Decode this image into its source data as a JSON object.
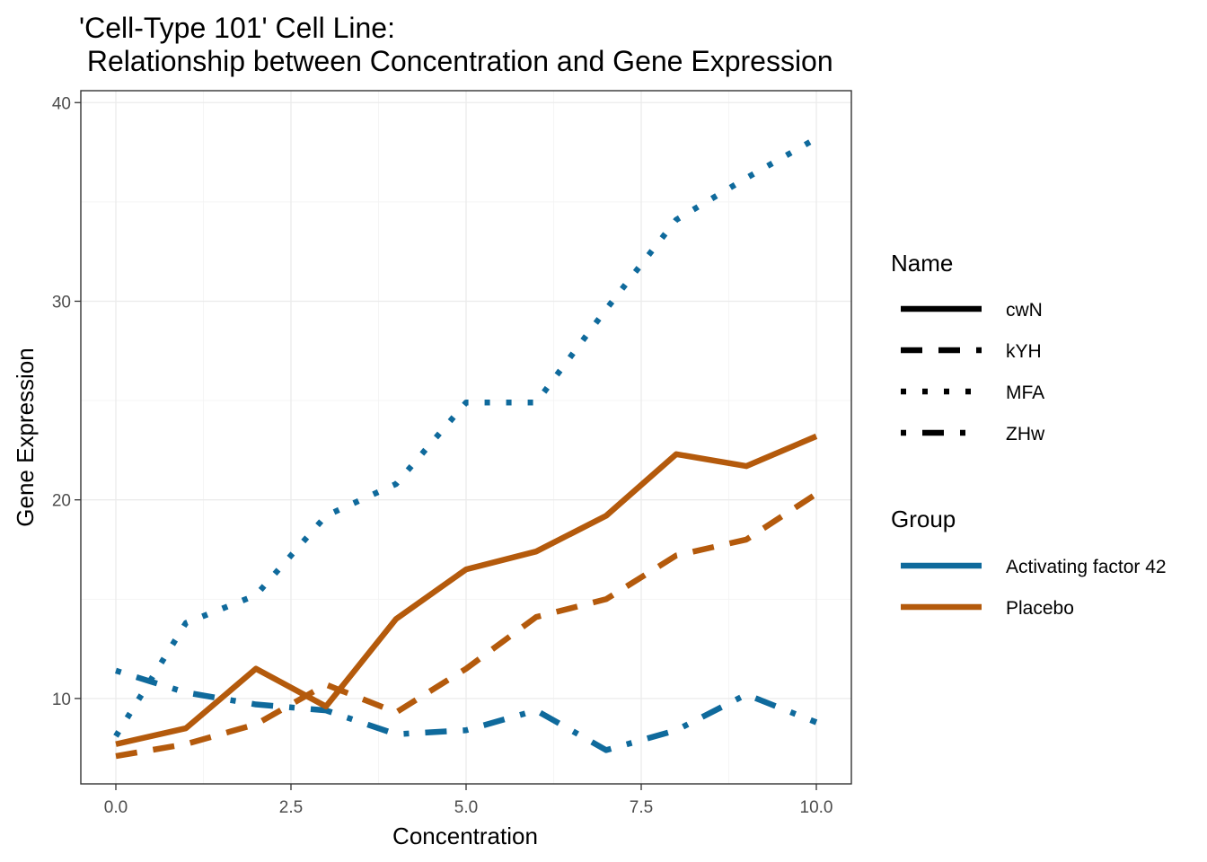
{
  "chart_data": {
    "type": "line",
    "title": "'Cell-Type 101' Cell Line:",
    "subtitle": " Relationship between Concentration and Gene Expression",
    "xlabel": "Concentration",
    "ylabel": "Gene Expression",
    "xlim": [
      -0.5,
      10.5
    ],
    "ylim": [
      5.7,
      40.6
    ],
    "x_ticks": [
      0,
      2.5,
      5,
      7.5,
      10
    ],
    "x_tick_labels": [
      "0.0",
      "2.5",
      "5.0",
      "7.5",
      "10.0"
    ],
    "y_ticks": [
      10,
      20,
      30,
      40
    ],
    "y_tick_labels": [
      "10",
      "20",
      "30",
      "40"
    ],
    "grid": true,
    "legend_placement": "right",
    "legend": {
      "name_title": "Name",
      "name_entries": [
        {
          "label": "cwN",
          "linetype": "solid"
        },
        {
          "label": "kYH",
          "linetype": "dashed"
        },
        {
          "label": "MFA",
          "linetype": "dotted"
        },
        {
          "label": "ZHw",
          "linetype": "dotdash"
        }
      ],
      "group_title": "Group",
      "group_entries": [
        {
          "label": "Activating factor 42",
          "color": "#0F6A9C"
        },
        {
          "label": "Placebo",
          "color": "#B45A0C"
        }
      ]
    },
    "x": [
      0,
      1,
      2,
      3,
      4,
      5,
      6,
      7,
      8,
      9,
      10
    ],
    "series": [
      {
        "name": "MFA",
        "group": "Activating factor 42",
        "color": "#0F6A9C",
        "linetype": "dotted",
        "values": [
          8.1,
          13.8,
          15.2,
          19.2,
          20.8,
          24.9,
          24.9,
          29.6,
          34.1,
          36.2,
          38.2
        ]
      },
      {
        "name": "ZHw",
        "group": "Activating factor 42",
        "color": "#0F6A9C",
        "linetype": "dotdash",
        "values": [
          11.4,
          10.3,
          9.7,
          9.4,
          8.2,
          8.4,
          9.4,
          7.4,
          8.4,
          10.2,
          8.8
        ]
      },
      {
        "name": "cwN",
        "group": "Placebo",
        "color": "#B45A0C",
        "linetype": "solid",
        "values": [
          7.7,
          8.5,
          11.5,
          9.6,
          14.0,
          16.5,
          17.4,
          19.2,
          22.3,
          21.7,
          23.2
        ]
      },
      {
        "name": "kYH",
        "group": "Placebo",
        "color": "#B45A0C",
        "linetype": "dashed",
        "values": [
          7.1,
          7.7,
          8.7,
          10.7,
          9.3,
          11.5,
          14.1,
          15.0,
          17.2,
          18.0,
          20.3
        ]
      }
    ]
  }
}
